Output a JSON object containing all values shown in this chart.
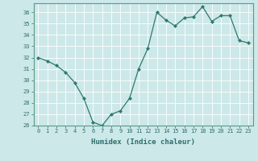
{
  "x": [
    0,
    1,
    2,
    3,
    4,
    5,
    6,
    7,
    8,
    9,
    10,
    11,
    12,
    13,
    14,
    15,
    16,
    17,
    18,
    19,
    20,
    21,
    22,
    23
  ],
  "y": [
    32.0,
    31.7,
    31.3,
    30.7,
    29.8,
    28.4,
    26.3,
    26.0,
    27.0,
    27.3,
    28.4,
    31.0,
    32.8,
    36.0,
    35.3,
    34.8,
    35.5,
    35.6,
    36.5,
    35.2,
    35.7,
    35.7,
    33.5,
    33.3
  ],
  "xlabel": "Humidex (Indice chaleur)",
  "ylim": [
    26,
    36.8
  ],
  "xlim": [
    -0.5,
    23.5
  ],
  "yticks": [
    26,
    27,
    28,
    29,
    30,
    31,
    32,
    33,
    34,
    35,
    36
  ],
  "xticks": [
    0,
    1,
    2,
    3,
    4,
    5,
    6,
    7,
    8,
    9,
    10,
    11,
    12,
    13,
    14,
    15,
    16,
    17,
    18,
    19,
    20,
    21,
    22,
    23
  ],
  "line_color": "#2d7a6e",
  "marker_color": "#2d7a6e",
  "bg_color": "#cde8e8",
  "grid_color": "#b8d8d8",
  "spine_color": "#5a9a8a",
  "font_color": "#2d6e6e",
  "font_size_ticks": 5.0,
  "font_size_xlabel": 6.5
}
